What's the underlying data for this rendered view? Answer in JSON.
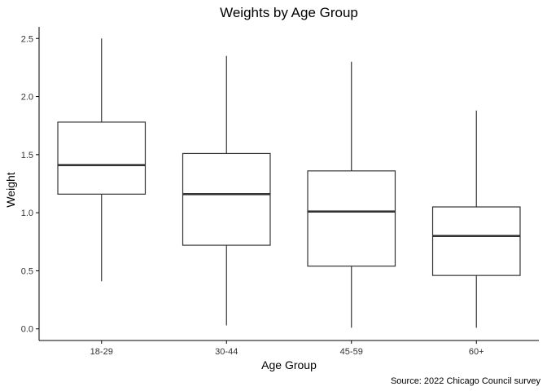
{
  "chart_data": {
    "type": "boxplot",
    "title": "Weights by Age Group",
    "xlabel": "Age Group",
    "ylabel": "Weight",
    "caption": "Source: 2022 Chicago Council survey",
    "categories": [
      "18-29",
      "30-44",
      "45-59",
      "60+"
    ],
    "boxes": [
      {
        "whisker_low": 0.41,
        "q1": 1.16,
        "median": 1.41,
        "q3": 1.78,
        "whisker_high": 2.5
      },
      {
        "whisker_low": 0.03,
        "q1": 0.72,
        "median": 1.16,
        "q3": 1.51,
        "whisker_high": 2.35
      },
      {
        "whisker_low": 0.01,
        "q1": 0.54,
        "median": 1.01,
        "q3": 1.36,
        "whisker_high": 2.3
      },
      {
        "whisker_low": 0.01,
        "q1": 0.46,
        "median": 0.8,
        "q3": 1.05,
        "whisker_high": 1.88
      }
    ],
    "ylim": [
      -0.1,
      2.6
    ],
    "yticks": [
      0.0,
      0.5,
      1.0,
      1.5,
      2.0,
      2.5
    ],
    "ytick_labels": [
      "0.0",
      "0.5",
      "1.0",
      "1.5",
      "2.0",
      "2.5"
    ],
    "grid": false,
    "legend": "none",
    "colors": {
      "box_fill": "#ffffff",
      "box_stroke": "#333333",
      "axis": "#000000"
    }
  }
}
